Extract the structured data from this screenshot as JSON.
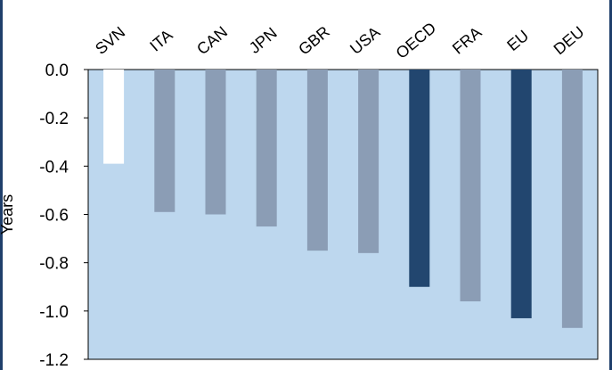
{
  "chart_data": {
    "type": "bar",
    "categories": [
      "SVN",
      "ITA",
      "CAN",
      "JPN",
      "GBR",
      "USA",
      "OECD",
      "FRA",
      "EU",
      "DEU"
    ],
    "values": [
      -0.39,
      -0.59,
      -0.6,
      -0.65,
      -0.75,
      -0.76,
      -0.9,
      -0.96,
      -1.03,
      -1.07
    ],
    "bar_colors": [
      "#ffffff",
      "#8b9db5",
      "#8b9db5",
      "#8b9db5",
      "#8b9db5",
      "#8b9db5",
      "#22466f",
      "#8b9db5",
      "#22466f",
      "#8b9db5"
    ],
    "ylabel": "Years",
    "xlabel": "",
    "ylim": [
      -1.2,
      0.0
    ],
    "yticks": [
      "0.0",
      "-0.2",
      "-0.4",
      "-0.6",
      "-0.8",
      "-1.0",
      "-1.2"
    ],
    "ytick_values": [
      0.0,
      -0.2,
      -0.4,
      -0.6,
      -0.8,
      -1.0,
      -1.2
    ],
    "plot_background": "#bdd7ee",
    "category_axis_position": "top",
    "grid": false,
    "legend": "none"
  }
}
